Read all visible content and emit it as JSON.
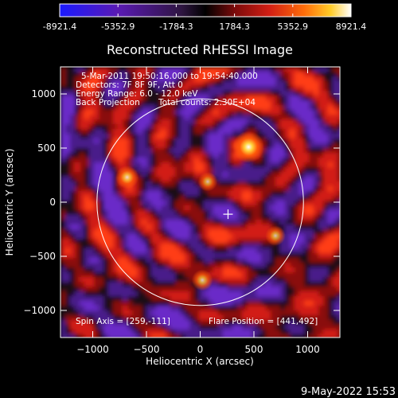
{
  "chart_data": {
    "type": "heatmap",
    "title": "Reconstructed RHESSI Image",
    "xlabel": "Heliocentric X (arcsec)",
    "ylabel": "Heliocentric Y (arcsec)",
    "xlim": [
      -1300,
      1300
    ],
    "ylim": [
      -1250,
      1250
    ],
    "xticks": [
      -1000,
      -500,
      0,
      500,
      1000
    ],
    "yticks": [
      -1000,
      -500,
      0,
      500,
      1000
    ],
    "colorbar": {
      "min": -8921.4,
      "max": 8921.4,
      "ticks": [
        -8921.4,
        -5352.9,
        -1784.3,
        1784.3,
        5352.9,
        8921.4
      ],
      "tick_labels": [
        "-8921.4",
        "-5352.9",
        "-1784.3",
        "1784.3",
        "5352.9",
        "8921.4"
      ]
    },
    "annotations": {
      "time_range": "5-Mar-2011 19:50:16.000 to 19:54:40.000",
      "detectors": "Detectors: 7F 8F 9F, Att 0",
      "energy_range": "Energy Range: 6.0 - 12.0 keV",
      "method": "Back Projection",
      "total_counts": "Total counts: 2.30E+04",
      "spin_axis": "Spin Axis = [259,-111]",
      "flare_position": "Flare Position = [441,492]"
    },
    "solar_disk_radius_arcsec": 961,
    "spin_axis": [
      259,
      -111
    ],
    "flare_position": [
      441,
      492
    ],
    "bright_sources": [
      {
        "x": 450,
        "y": 510,
        "value": 8921.4
      },
      {
        "x": -680,
        "y": 230,
        "value": 5000
      },
      {
        "x": 70,
        "y": 190,
        "value": 3200
      },
      {
        "x": 20,
        "y": -720,
        "value": 4000
      },
      {
        "x": 700,
        "y": -310,
        "value": 3500
      }
    ]
  },
  "footer": {
    "timestamp": "9-May-2022 15:53"
  },
  "colors": {
    "background": "#000000",
    "foreground": "#ffffff",
    "colormap": [
      "#1a1aff",
      "#5a1ab4",
      "#2e1540",
      "#000000",
      "#3a0a0a",
      "#c81a1a",
      "#ff4a0a",
      "#ffc81e",
      "#ffffff"
    ]
  }
}
